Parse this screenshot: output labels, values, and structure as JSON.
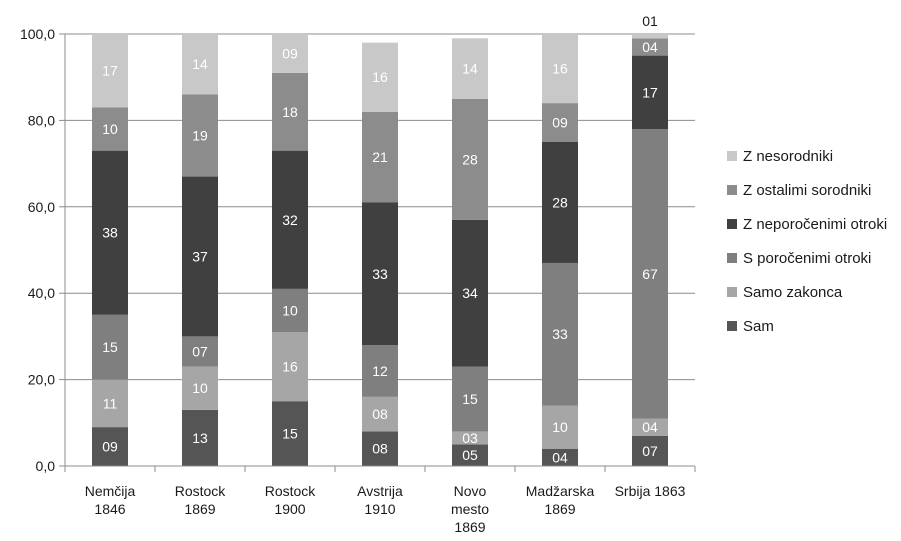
{
  "chart_data": {
    "type": "bar",
    "stacked": true,
    "categories": [
      [
        "Nemčija",
        "1846"
      ],
      [
        "Rostock",
        "1869"
      ],
      [
        "Rostock",
        "1900"
      ],
      [
        "Avstrija",
        "1910"
      ],
      [
        "Novo",
        "mesto",
        "1869"
      ],
      [
        "Madžarska",
        "1869"
      ],
      [
        "Srbija 1863"
      ]
    ],
    "y_ticks": [
      "0,0",
      "20,0",
      "40,0",
      "60,0",
      "80,0",
      "100,0"
    ],
    "ylim": [
      0,
      100
    ],
    "grid": true,
    "legend_position": "right",
    "series": [
      {
        "name": "Sam",
        "color": "#555555",
        "values": [
          9,
          13,
          15,
          8,
          5,
          4,
          7
        ],
        "labels": [
          "09",
          "13",
          "15",
          "08",
          "05",
          "04",
          "07"
        ]
      },
      {
        "name": "Samo zakonca",
        "color": "#a6a6a6",
        "values": [
          11,
          10,
          16,
          8,
          3,
          10,
          4
        ],
        "labels": [
          "11",
          "10",
          "16",
          "08",
          "03",
          "10",
          "04"
        ]
      },
      {
        "name": "S poročenimi otroki",
        "color": "#7f7f7f",
        "values": [
          15,
          7,
          10,
          12,
          15,
          33,
          67
        ],
        "labels": [
          "15",
          "07",
          "10",
          "12",
          "15",
          "33",
          "67"
        ]
      },
      {
        "name": "Z neporočenimi otroki",
        "color": "#404040",
        "values": [
          38,
          37,
          32,
          33,
          34,
          28,
          17
        ],
        "labels": [
          "38",
          "37",
          "32",
          "33",
          "34",
          "28",
          "17"
        ]
      },
      {
        "name": "Z ostalimi sorodniki",
        "color": "#8c8c8c",
        "values": [
          10,
          19,
          18,
          21,
          28,
          9,
          4
        ],
        "labels": [
          "10",
          "19",
          "18",
          "21",
          "28",
          "09",
          "04"
        ]
      },
      {
        "name": "Z nesorodniki",
        "color": "#c8c8c8",
        "values": [
          17,
          14,
          9,
          16,
          14,
          16,
          1
        ],
        "labels": [
          "17",
          "14",
          "09",
          "16",
          "14",
          "16",
          "01"
        ]
      }
    ]
  }
}
